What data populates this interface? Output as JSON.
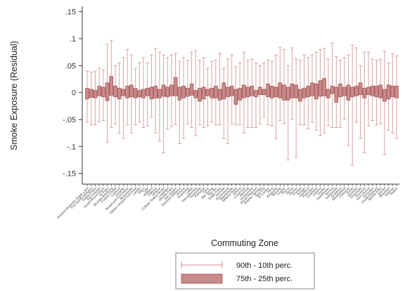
{
  "chart_data": {
    "type": "box",
    "title": "",
    "xlabel": "Commuting Zone",
    "ylabel": "Smoke Exposure (Residual)",
    "ylim": [
      -0.17,
      0.16
    ],
    "yticks": [
      0.15,
      0.1,
      0.05,
      0,
      -0.05,
      -0.1,
      -0.15
    ],
    "ytick_labels": [
      ".15",
      ".1",
      ".05",
      "0",
      "-.05",
      "-.1",
      "-.15"
    ],
    "grid": false,
    "legend_position": "bottom",
    "legend": [
      {
        "label": "90th - 10th perc.",
        "kind": "whisker"
      },
      {
        "label": "75th - 25th perc.",
        "kind": "box"
      }
    ],
    "colors": {
      "box_fill": "#c98a8a",
      "box_edge": "#9c4b4b",
      "whisker": "#d9a3a3",
      "axis": "#333333"
    },
    "categories": [
      "Houston-Baytown-Sugar Land",
      "Fort Worth-Arlington",
      "Dallas-Plano",
      "San Antonio",
      "Austin-Round Rock",
      "El Paso",
      "McAllen-Edinburg",
      "Corpus Christi",
      "Lubbock",
      "Amarillo",
      "Beaumont-Port Arthur",
      "Brownsville",
      "Killeen-Temple-Fort Hood",
      "Laredo",
      "Waco",
      "Tyler",
      "Midland",
      "Odessa",
      "Abilene",
      "College Station-Bryan",
      "Longview",
      "Wichita Falls",
      "San Angelo",
      "Sherman-Denison",
      "Victoria",
      "Texarkana",
      "Lufkin",
      "Nacogdoches",
      "Huntsville",
      "Palestine",
      "Paris",
      "Big Spring",
      "Del Rio",
      "Eagle Pass",
      "Kerrville",
      "Brownwood",
      "Stephenville",
      "Mineral Wells",
      "Athens",
      "Corsicana",
      "Marshall",
      "Jacksonville",
      "Mount Pleasant",
      "Sulphur Springs",
      "Bay City",
      "El Campo",
      "Alice",
      "Kingsville",
      "Beeville",
      "Uvalde",
      "Pecos",
      "Alpine",
      "Dumas",
      "Pampa",
      "Borger",
      "Hereford",
      "Plainview",
      "Levelland",
      "Lamesa",
      "Snyder",
      "Sweetwater",
      "Vernon",
      "Gainesville",
      "Granbury",
      "Weatherford",
      "Cleburne",
      "Ennis",
      "Bonham",
      "Greenville",
      "Rockport",
      "Port Lavaca",
      "Gonzales",
      "Fredericksburg",
      "Marble Falls",
      "Burnet",
      "Brenham",
      "Bastrop",
      "Seguin"
    ],
    "series": [
      {
        "name": "90th - 10th perc.",
        "low": [
          -0.055,
          -0.06,
          -0.06,
          -0.055,
          -0.052,
          -0.092,
          -0.065,
          -0.058,
          -0.075,
          -0.085,
          -0.06,
          -0.075,
          -0.06,
          -0.055,
          -0.065,
          -0.062,
          -0.045,
          -0.075,
          -0.09,
          -0.112,
          -0.068,
          -0.063,
          -0.06,
          -0.095,
          -0.085,
          -0.058,
          -0.065,
          -0.08,
          -0.06,
          -0.065,
          -0.062,
          -0.055,
          -0.06,
          -0.06,
          -0.085,
          -0.095,
          -0.058,
          -0.06,
          -0.06,
          -0.075,
          -0.065,
          -0.065,
          -0.065,
          -0.058,
          -0.045,
          -0.06,
          -0.062,
          -0.085,
          -0.052,
          -0.058,
          -0.125,
          -0.05,
          -0.12,
          -0.06,
          -0.06,
          -0.068,
          -0.055,
          -0.07,
          -0.08,
          -0.075,
          -0.062,
          -0.065,
          -0.065,
          -0.065,
          -0.05,
          -0.098,
          -0.135,
          -0.055,
          -0.085,
          -0.112,
          -0.062,
          -0.052,
          -0.06,
          -0.058,
          -0.115,
          -0.07,
          -0.075,
          -0.085
        ],
        "high": [
          0.04,
          0.038,
          0.04,
          0.045,
          0.042,
          0.09,
          0.097,
          0.05,
          0.055,
          0.065,
          0.08,
          0.07,
          0.045,
          0.055,
          0.065,
          0.055,
          0.07,
          0.082,
          0.075,
          0.07,
          0.065,
          0.07,
          0.073,
          0.058,
          0.065,
          0.06,
          0.075,
          0.078,
          0.06,
          0.065,
          0.045,
          0.058,
          0.06,
          0.073,
          0.045,
          0.062,
          0.07,
          0.048,
          0.055,
          0.075,
          0.06,
          0.062,
          0.055,
          0.05,
          0.055,
          0.06,
          0.058,
          0.07,
          0.084,
          0.08,
          0.05,
          0.083,
          0.062,
          0.06,
          0.07,
          0.065,
          0.07,
          0.075,
          0.08,
          0.082,
          0.062,
          0.092,
          0.067,
          0.06,
          0.065,
          0.07,
          0.088,
          0.083,
          0.05,
          0.075,
          0.075,
          0.062,
          0.06,
          0.062,
          0.077,
          0.055,
          0.072,
          0.068
        ]
      },
      {
        "name": "75th - 25th perc.",
        "q1": [
          -0.012,
          -0.009,
          -0.01,
          -0.006,
          -0.008,
          -0.015,
          -0.005,
          -0.008,
          -0.012,
          -0.006,
          -0.01,
          -0.008,
          -0.01,
          -0.008,
          -0.01,
          -0.006,
          -0.012,
          -0.01,
          -0.01,
          -0.007,
          -0.008,
          -0.006,
          -0.006,
          -0.014,
          -0.01,
          -0.007,
          -0.005,
          -0.01,
          -0.016,
          -0.012,
          -0.006,
          -0.01,
          -0.01,
          -0.014,
          -0.012,
          -0.008,
          -0.006,
          -0.022,
          -0.014,
          -0.01,
          -0.008,
          -0.006,
          -0.008,
          -0.004,
          -0.004,
          -0.008,
          -0.01,
          -0.008,
          -0.01,
          -0.014,
          -0.014,
          -0.01,
          -0.01,
          -0.016,
          -0.01,
          -0.008,
          -0.006,
          -0.012,
          -0.007,
          -0.006,
          -0.01,
          -0.002,
          -0.018,
          -0.008,
          -0.006,
          -0.014,
          -0.008,
          -0.006,
          -0.004,
          -0.01,
          -0.004,
          -0.006,
          -0.008,
          -0.01,
          -0.016,
          -0.012,
          -0.008,
          -0.01
        ],
        "q3": [
          0.008,
          0.006,
          0.004,
          0.012,
          0.01,
          0.018,
          0.03,
          0.012,
          0.008,
          0.006,
          0.012,
          0.014,
          0.008,
          0.004,
          0.006,
          0.008,
          0.01,
          0.012,
          0.006,
          0.014,
          0.01,
          0.014,
          0.028,
          0.01,
          0.012,
          0.008,
          0.016,
          0.004,
          0.008,
          0.01,
          0.006,
          0.008,
          0.012,
          0.006,
          0.018,
          0.01,
          0.012,
          0.006,
          0.008,
          0.014,
          0.01,
          0.012,
          0.004,
          0.01,
          0.006,
          0.016,
          0.012,
          0.01,
          0.018,
          0.014,
          0.01,
          0.016,
          0.014,
          0.006,
          0.008,
          0.012,
          0.018,
          0.016,
          0.022,
          0.026,
          0.006,
          0.012,
          0.01,
          0.016,
          0.01,
          0.014,
          0.01,
          0.012,
          0.018,
          0.008,
          0.01,
          0.012,
          0.012,
          0.014,
          0.006,
          0.014,
          0.012,
          0.012
        ]
      }
    ]
  }
}
